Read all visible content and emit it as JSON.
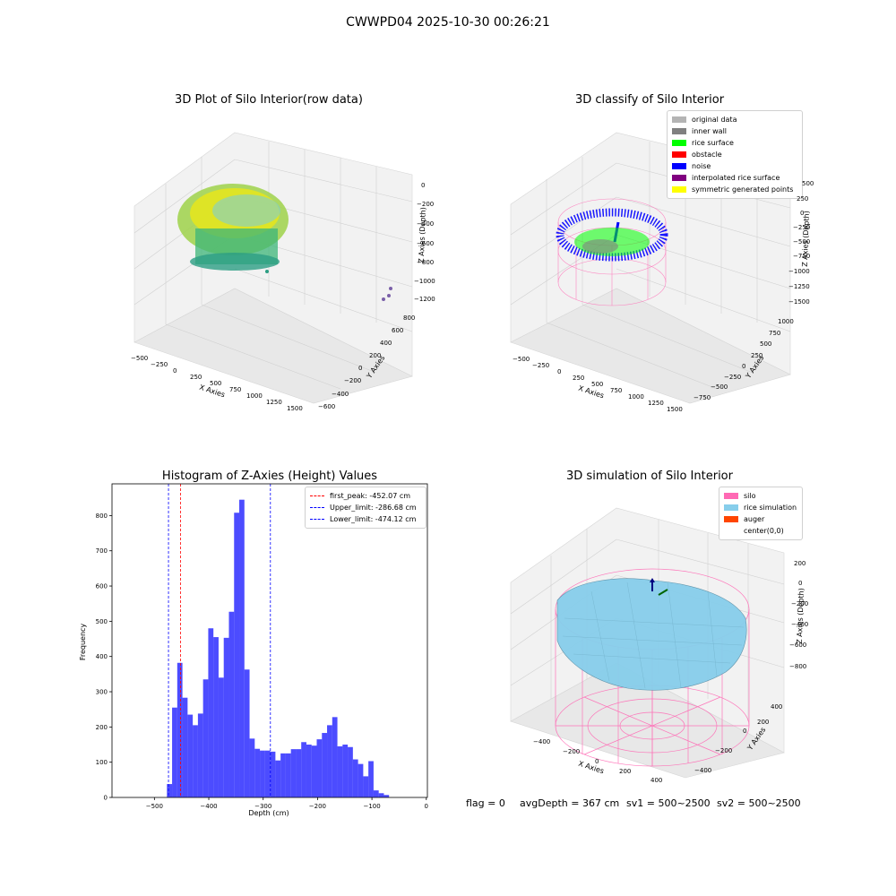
{
  "figure": {
    "suptitle": "CWWPD04 2025-10-30 00:26:21",
    "footer": {
      "flag": "flag = 0",
      "avg_depth": "avgDepth = 367 cm",
      "sv1": "sv1 = 500~2500",
      "sv2": "sv2 = 500~2500"
    }
  },
  "chart_data": [
    {
      "type": "scatter",
      "title": "3D Plot of Silo Interior(row data)",
      "xlabel": "X Axies",
      "ylabel": "Y Axies",
      "zlabel": "Z Axies (Depth)",
      "x_ticks": [
        "−500",
        "−250",
        "0",
        "250",
        "500",
        "750",
        "1000",
        "1250",
        "1500"
      ],
      "y_ticks": [
        "−600",
        "−400",
        "−200",
        "0",
        "200",
        "400",
        "600",
        "800"
      ],
      "z_ticks": [
        "0",
        "−200",
        "−400",
        "−600",
        "−800",
        "−1000",
        "−1200"
      ],
      "colormap": "viridis"
    },
    {
      "type": "scatter",
      "title": "3D classify of Silo Interior",
      "xlabel": "X Axies",
      "ylabel": "Y Axies",
      "zlabel": "Z Axies (Depth)",
      "x_ticks": [
        "−500",
        "−250",
        "0",
        "250",
        "500",
        "750",
        "1000",
        "1250",
        "1500"
      ],
      "y_ticks": [
        "−750",
        "−500",
        "−250",
        "0",
        "250",
        "500",
        "750",
        "1000"
      ],
      "z_ticks": [
        "500",
        "250",
        "0",
        "−250",
        "−500",
        "−750",
        "−1000",
        "−1250",
        "−1500"
      ],
      "legend": [
        {
          "label": "original data",
          "color": "#b4b4b4"
        },
        {
          "label": "inner wall",
          "color": "#808080"
        },
        {
          "label": "rice surface",
          "color": "#00ff00"
        },
        {
          "label": "obstacle",
          "color": "#ff0000"
        },
        {
          "label": "noise",
          "color": "#0000ff"
        },
        {
          "label": "interpolated rice surface",
          "color": "#800080"
        },
        {
          "label": "symmetric generated points",
          "color": "#ffff00"
        }
      ]
    },
    {
      "type": "bar",
      "title": "Histogram of Z-Axies (Height) Values",
      "xlabel": "Depth (cm)",
      "ylabel": "Frequency",
      "xlim": [
        -578,
        2
      ],
      "ylim": [
        0,
        890
      ],
      "x_ticks": [
        -500,
        -400,
        -300,
        -200,
        -100,
        0
      ],
      "x_tick_labels": [
        "−500",
        "−400",
        "−300",
        "−200",
        "−100",
        "0"
      ],
      "y_ticks": [
        0,
        100,
        200,
        300,
        400,
        500,
        600,
        700,
        800
      ],
      "bar_color": "#0000ff",
      "bin_start": -477,
      "bin_width": 9.5,
      "values": [
        38,
        255,
        382,
        283,
        235,
        205,
        238,
        335,
        480,
        455,
        340,
        453,
        527,
        808,
        845,
        363,
        167,
        138,
        133,
        133,
        130,
        105,
        125,
        125,
        137,
        137,
        157,
        150,
        147,
        165,
        183,
        205,
        228,
        145,
        150,
        143,
        108,
        95,
        60,
        103,
        20,
        12,
        7
      ],
      "vlines": [
        {
          "x": -452.07,
          "color": "#ff0000",
          "label": "first_peak: -452.07 cm"
        },
        {
          "x": -286.68,
          "color": "#0000ff",
          "label": "Upper_limit: -286.68 cm"
        },
        {
          "x": -474.12,
          "color": "#0000ff",
          "label": "Lower_limit: -474.12 cm"
        }
      ],
      "legend_position": "top-right"
    },
    {
      "type": "surface",
      "title": "3D simulation of Silo Interior",
      "xlabel": "X Axies",
      "ylabel": "Y Axies",
      "zlabel": "Z Axies (Depth)",
      "x_ticks": [
        "−400",
        "−200",
        "0",
        "200",
        "400"
      ],
      "y_ticks": [
        "−400",
        "−200",
        "0",
        "200",
        "400"
      ],
      "z_ticks": [
        "200",
        "0",
        "−200",
        "−400",
        "−600",
        "−800"
      ],
      "legend": [
        {
          "label": "silo",
          "color": "#ff69b4"
        },
        {
          "label": "rice simulation",
          "color": "#87ceeb"
        },
        {
          "label": "auger",
          "color": "#ff4500"
        },
        {
          "label": "center(0,0)",
          "color": "#ffffff"
        }
      ]
    }
  ]
}
